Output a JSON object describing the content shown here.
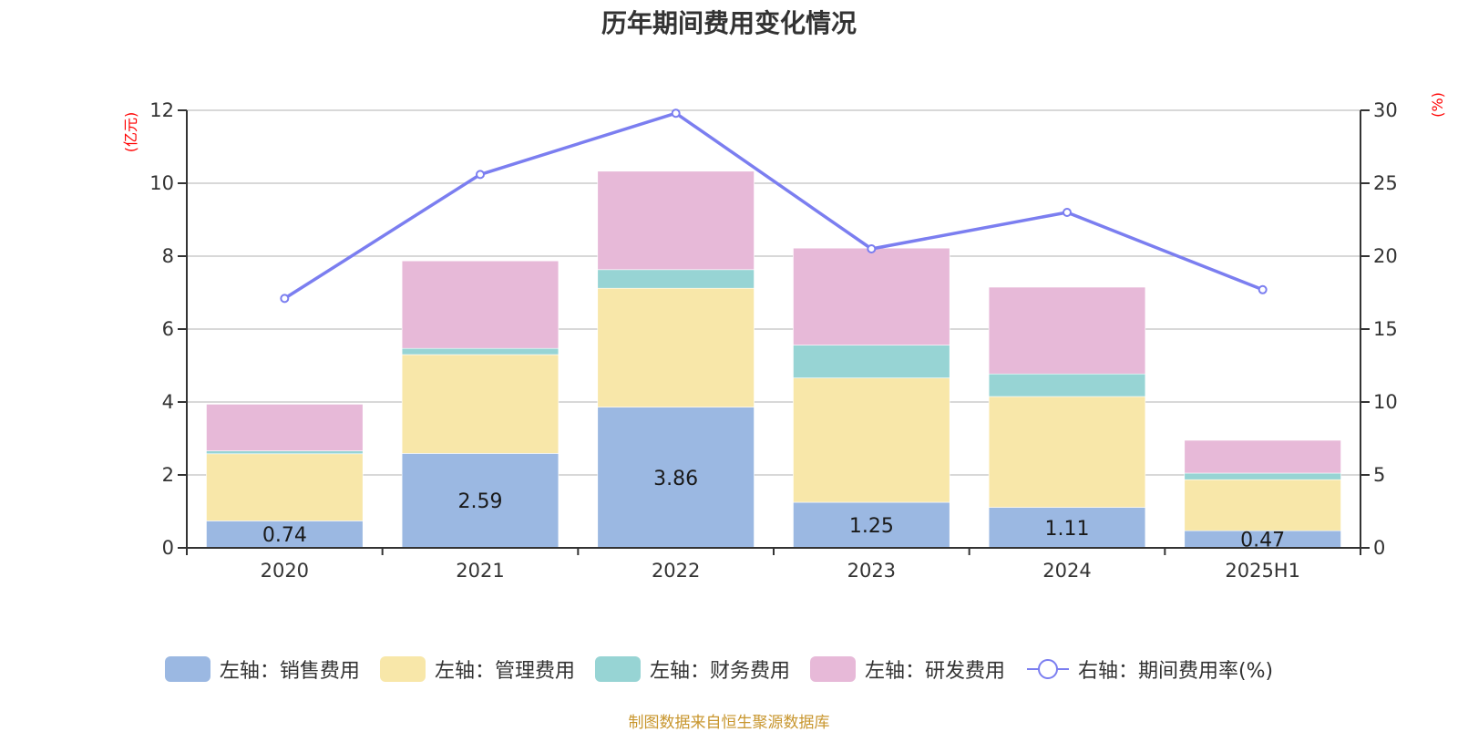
{
  "chart_data": {
    "type": "bar",
    "title": "历年期间费用变化情况",
    "categories": [
      "2020",
      "2021",
      "2022",
      "2023",
      "2024",
      "2025H1"
    ],
    "stacked": true,
    "series": [
      {
        "name": "左轴：销售费用",
        "axis": "left",
        "type": "bar",
        "color": "#9bb8e2",
        "values": [
          0.74,
          2.59,
          3.86,
          1.25,
          1.11,
          0.47
        ],
        "show_labels": true
      },
      {
        "name": "左轴：管理费用",
        "axis": "left",
        "type": "bar",
        "color": "#f8e7a9",
        "values": [
          1.84,
          2.71,
          3.26,
          3.41,
          3.04,
          1.4
        ],
        "show_labels": false
      },
      {
        "name": "左轴：财务费用",
        "axis": "left",
        "type": "bar",
        "color": "#97d4d4",
        "values": [
          0.08,
          0.17,
          0.51,
          0.9,
          0.62,
          0.18
        ],
        "show_labels": false
      },
      {
        "name": "左轴：研发费用",
        "axis": "left",
        "type": "bar",
        "color": "#e7b9d8",
        "values": [
          1.28,
          2.4,
          2.7,
          2.66,
          2.38,
          0.9
        ],
        "show_labels": false
      },
      {
        "name": "右轴：期间费用率(%)",
        "axis": "right",
        "type": "line",
        "color": "#7b7ef0",
        "values": [
          17.1,
          25.6,
          29.8,
          20.5,
          23.0,
          17.7
        ],
        "show_labels": false
      }
    ],
    "left_axis": {
      "label": "(亿元)",
      "ylim": [
        0,
        12
      ],
      "ticks": [
        "0",
        "2",
        "4",
        "6",
        "8",
        "10",
        "12"
      ]
    },
    "right_axis": {
      "label": "(%)",
      "ylim": [
        0,
        30
      ],
      "ticks": [
        "0",
        "5",
        "10",
        "15",
        "20",
        "25",
        "30"
      ]
    },
    "grid": true,
    "legend_position": "bottom",
    "source_note": "制图数据来自恒生聚源数据库"
  }
}
